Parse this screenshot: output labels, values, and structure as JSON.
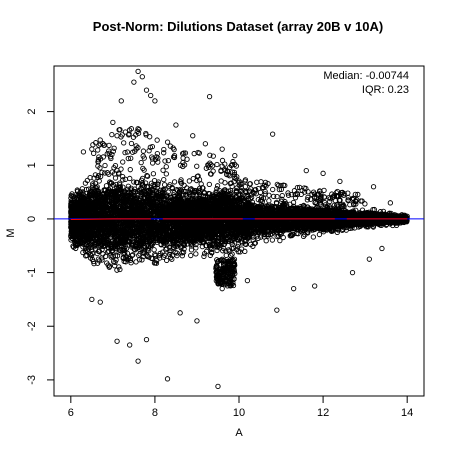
{
  "chart_data": {
    "type": "scatter",
    "title": "Post-Norm: Dilutions Dataset (array 20B v 10A)",
    "xlabel": "A",
    "ylabel": "M",
    "xlim": [
      5.6,
      14.4
    ],
    "ylim": [
      -3.3,
      2.85
    ],
    "x_ticks": [
      6,
      8,
      10,
      12,
      14
    ],
    "y_ticks": [
      -3,
      -2,
      -1,
      0,
      1,
      2
    ],
    "grid": false,
    "point_style": "open-circle",
    "point_color": "#000000",
    "annotations": {
      "median": "Median: -0.00744",
      "iqr": "IQR: 0.23",
      "placement": "top-right"
    },
    "reference_line": {
      "y": 0,
      "color": "#0000ff"
    },
    "loess_line": {
      "color": "#ff0000",
      "points": [
        [
          6.0,
          -0.01
        ],
        [
          7.0,
          0.0
        ],
        [
          8.0,
          0.0
        ],
        [
          9.0,
          0.0
        ],
        [
          10.0,
          0.0
        ],
        [
          11.0,
          0.0
        ],
        [
          12.0,
          0.0
        ],
        [
          13.0,
          0.0
        ],
        [
          14.0,
          0.0
        ]
      ]
    },
    "cloud_envelope": [
      [
        5.9,
        -0.35,
        0.35
      ],
      [
        6.2,
        -0.75,
        0.65
      ],
      [
        6.5,
        -0.9,
        0.85
      ],
      [
        6.8,
        -1.0,
        1.0
      ],
      [
        7.2,
        -1.0,
        1.2
      ],
      [
        7.6,
        -0.95,
        1.15
      ],
      [
        8.0,
        -0.85,
        1.0
      ],
      [
        8.5,
        -0.75,
        0.85
      ],
      [
        9.0,
        -0.7,
        0.7
      ],
      [
        9.5,
        -0.75,
        0.6
      ],
      [
        9.7,
        -1.25,
        0.55
      ],
      [
        10.0,
        -0.65,
        0.5
      ],
      [
        10.5,
        -0.55,
        0.45
      ],
      [
        11.0,
        -0.45,
        0.4
      ],
      [
        11.5,
        -0.38,
        0.35
      ],
      [
        12.0,
        -0.32,
        0.3
      ],
      [
        12.5,
        -0.27,
        0.25
      ],
      [
        13.0,
        -0.22,
        0.2
      ],
      [
        13.5,
        -0.16,
        0.15
      ],
      [
        14.0,
        -0.08,
        0.08
      ]
    ],
    "outliers": [
      [
        7.5,
        2.55
      ],
      [
        7.6,
        2.75
      ],
      [
        7.7,
        2.65
      ],
      [
        7.8,
        2.4
      ],
      [
        7.9,
        2.3
      ],
      [
        7.2,
        2.2
      ],
      [
        8.0,
        2.2
      ],
      [
        9.3,
        2.28
      ],
      [
        7.0,
        1.8
      ],
      [
        8.5,
        1.75
      ],
      [
        7.1,
        1.55
      ],
      [
        8.9,
        1.55
      ],
      [
        10.8,
        1.58
      ],
      [
        6.3,
        1.25
      ],
      [
        6.5,
        1.3
      ],
      [
        9.2,
        1.4
      ],
      [
        9.6,
        1.3
      ],
      [
        9.9,
        1.18
      ],
      [
        11.6,
        0.9
      ],
      [
        12.0,
        0.85
      ],
      [
        12.4,
        0.7
      ],
      [
        13.2,
        0.6
      ],
      [
        13.6,
        0.3
      ],
      [
        14.0,
        0.05
      ],
      [
        6.5,
        -1.5
      ],
      [
        6.7,
        -1.55
      ],
      [
        7.1,
        -2.28
      ],
      [
        7.4,
        -2.35
      ],
      [
        7.6,
        -2.65
      ],
      [
        7.8,
        -2.25
      ],
      [
        8.3,
        -2.98
      ],
      [
        9.5,
        -3.12
      ],
      [
        8.6,
        -1.75
      ],
      [
        9.0,
        -1.9
      ],
      [
        10.2,
        -1.15
      ],
      [
        10.9,
        -1.7
      ],
      [
        11.3,
        -1.3
      ],
      [
        11.8,
        -1.25
      ],
      [
        12.7,
        -1.0
      ],
      [
        13.1,
        -0.75
      ],
      [
        13.4,
        -0.55
      ],
      [
        9.6,
        -1.3
      ],
      [
        9.75,
        -1.2
      ]
    ]
  }
}
